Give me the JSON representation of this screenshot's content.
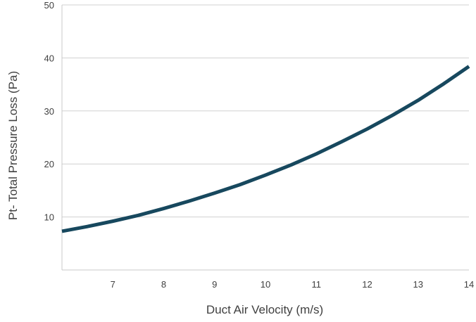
{
  "chart_data": {
    "type": "line",
    "title": "",
    "xlabel": "Duct Air Velocity (m/s)",
    "ylabel": "Pt- Total Pressure Loss (Pa)",
    "xlim": [
      6,
      14
    ],
    "ylim": [
      0,
      50
    ],
    "x_ticks": [
      7,
      8,
      9,
      10,
      11,
      12,
      13,
      14
    ],
    "y_ticks": [
      10,
      20,
      30,
      40,
      50
    ],
    "grid": "horizontal",
    "legend": "none",
    "series": [
      {
        "color": "#17485e",
        "x": [
          6,
          6.5,
          7,
          7.5,
          8,
          8.5,
          9,
          9.5,
          10,
          10.5,
          11,
          11.5,
          12,
          12.5,
          13,
          13.5,
          14
        ],
        "y": [
          7.3,
          8.2,
          9.2,
          10.3,
          11.6,
          13.0,
          14.5,
          16.1,
          17.9,
          19.8,
          21.9,
          24.2,
          26.6,
          29.2,
          32.0,
          35.1,
          38.4
        ]
      }
    ]
  }
}
